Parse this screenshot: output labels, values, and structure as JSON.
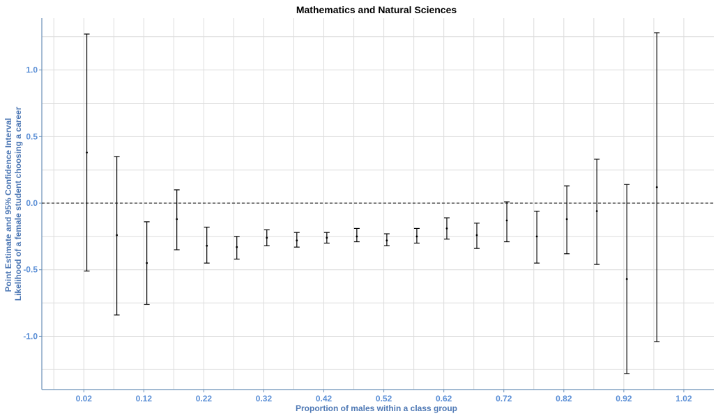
{
  "colors": {
    "axis_text": "#5b8fd6",
    "axis_title": "#4f79b5",
    "axis_line": "#6a90b8",
    "grid": "#dcdcdc",
    "errorbar": "#000000",
    "refline": "#000000"
  },
  "chart_data": {
    "type": "errorbar",
    "title": "Mathematics and Natural Sciences",
    "xlabel": "Proportion of males within a class group",
    "ylabel_lines": [
      "Point Estimate and 95% Confidence Interval",
      "Likelihood of a female student choosing a career"
    ],
    "xlim": [
      -0.05,
      1.07
    ],
    "ylim": [
      -1.4,
      1.39
    ],
    "x_ticks": [
      0.02,
      0.12,
      0.22,
      0.32,
      0.42,
      0.52,
      0.62,
      0.72,
      0.82,
      0.92,
      1.02
    ],
    "x_tick_labels": [
      "0.02",
      "0.12",
      "0.22",
      "0.32",
      "0.42",
      "0.52",
      "0.62",
      "0.72",
      "0.82",
      "0.92",
      "1.02"
    ],
    "y_ticks": [
      1.0,
      0.5,
      0.0,
      -0.5,
      -1.0
    ],
    "y_tick_labels": [
      "1.0",
      "0.5",
      "0.0",
      "-0.5",
      "-1.0"
    ],
    "grid": true,
    "reference_line_y": 0,
    "points": [
      {
        "x": 0.025,
        "estimate": 0.38,
        "lower": -0.51,
        "upper": 1.27
      },
      {
        "x": 0.075,
        "estimate": -0.24,
        "lower": -0.84,
        "upper": 0.35
      },
      {
        "x": 0.125,
        "estimate": -0.45,
        "lower": -0.76,
        "upper": -0.14
      },
      {
        "x": 0.175,
        "estimate": -0.12,
        "lower": -0.35,
        "upper": 0.1
      },
      {
        "x": 0.225,
        "estimate": -0.32,
        "lower": -0.45,
        "upper": -0.18
      },
      {
        "x": 0.275,
        "estimate": -0.33,
        "lower": -0.42,
        "upper": -0.25
      },
      {
        "x": 0.325,
        "estimate": -0.26,
        "lower": -0.32,
        "upper": -0.2
      },
      {
        "x": 0.375,
        "estimate": -0.28,
        "lower": -0.33,
        "upper": -0.22
      },
      {
        "x": 0.425,
        "estimate": -0.26,
        "lower": -0.3,
        "upper": -0.22
      },
      {
        "x": 0.475,
        "estimate": -0.25,
        "lower": -0.29,
        "upper": -0.19
      },
      {
        "x": 0.525,
        "estimate": -0.28,
        "lower": -0.32,
        "upper": -0.23
      },
      {
        "x": 0.575,
        "estimate": -0.25,
        "lower": -0.3,
        "upper": -0.19
      },
      {
        "x": 0.625,
        "estimate": -0.19,
        "lower": -0.27,
        "upper": -0.11
      },
      {
        "x": 0.675,
        "estimate": -0.24,
        "lower": -0.34,
        "upper": -0.15
      },
      {
        "x": 0.725,
        "estimate": -0.13,
        "lower": -0.29,
        "upper": 0.01
      },
      {
        "x": 0.775,
        "estimate": -0.25,
        "lower": -0.45,
        "upper": -0.06
      },
      {
        "x": 0.825,
        "estimate": -0.12,
        "lower": -0.38,
        "upper": 0.13
      },
      {
        "x": 0.875,
        "estimate": -0.06,
        "lower": -0.46,
        "upper": 0.33
      },
      {
        "x": 0.925,
        "estimate": -0.57,
        "lower": -1.28,
        "upper": 0.14
      },
      {
        "x": 0.975,
        "estimate": 0.12,
        "lower": -1.04,
        "upper": 1.28
      }
    ]
  }
}
